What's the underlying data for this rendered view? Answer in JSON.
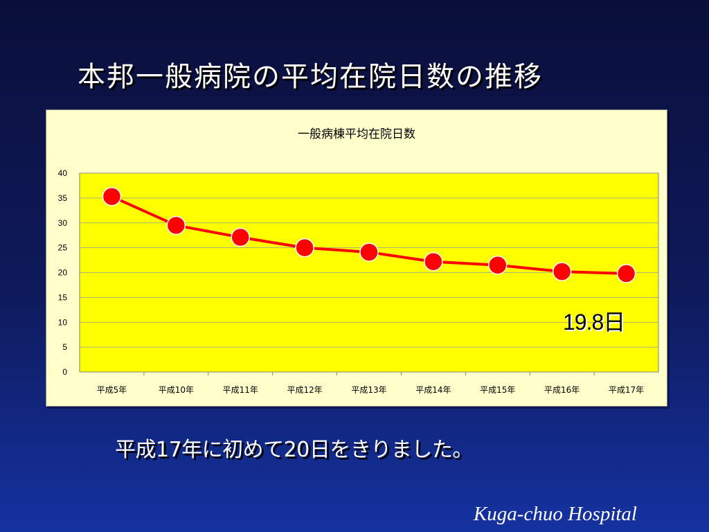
{
  "slide": {
    "title": "本邦一般病院の平均在院日数の推移",
    "callout": "19.8日",
    "caption": "平成17年に初めて20日をきりました。",
    "footer": "Kuga-chuo Hospital"
  },
  "colors": {
    "background": "#0f1a5c",
    "panel": "#ffffcc",
    "plot_area": "#ffff00",
    "series": "#ff0000",
    "gridline": "#999999"
  },
  "chart_data": {
    "type": "line",
    "title": "一般病棟平均在院日数",
    "categories": [
      "平成5年",
      "平成10年",
      "平成11年",
      "平成12年",
      "平成13年",
      "平成14年",
      "平成15年",
      "平成16年",
      "平成17年"
    ],
    "series": [
      {
        "values": [
          35.3,
          29.5,
          27.1,
          25.0,
          24.1,
          22.2,
          21.5,
          20.2,
          19.8
        ]
      }
    ],
    "ylim": [
      0,
      40
    ],
    "yticks": [
      0,
      5,
      10,
      15,
      20,
      25,
      30,
      35,
      40
    ],
    "grid": true,
    "legend": "none"
  }
}
